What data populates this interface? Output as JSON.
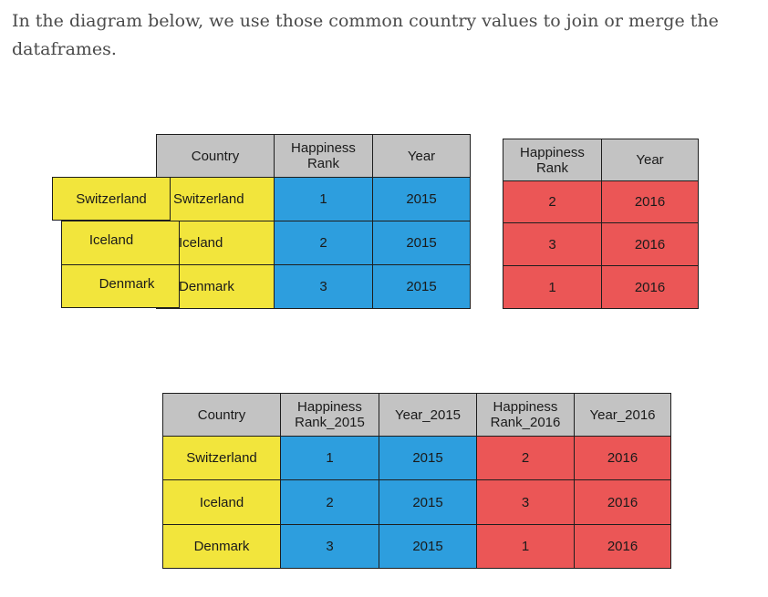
{
  "intro_text": "In the diagram below, we use those common country values to join or merge the dataframes.",
  "colors": {
    "header": "#c3c3c3",
    "country": "#f2e53c",
    "table_2015": "#2d9ede",
    "table_2016": "#eb5656"
  },
  "left_keys": [
    "Switzerland",
    "Iceland",
    "Denmark"
  ],
  "table_2015": {
    "headers": [
      "Country",
      "Happiness\nRank",
      "Year"
    ],
    "rows": [
      [
        "Switzerland",
        "1",
        "2015"
      ],
      [
        "Iceland",
        "2",
        "2015"
      ],
      [
        "Denmark",
        "3",
        "2015"
      ]
    ]
  },
  "table_2016": {
    "headers": [
      "Happiness\nRank",
      "Year"
    ],
    "rows": [
      [
        "2",
        "2016"
      ],
      [
        "3",
        "2016"
      ],
      [
        "1",
        "2016"
      ]
    ]
  },
  "merged": {
    "headers": [
      "Country",
      "Happiness\nRank_2015",
      "Year_2015",
      "Happiness\nRank_2016",
      "Year_2016"
    ],
    "rows": [
      [
        "Switzerland",
        "1",
        "2015",
        "2",
        "2016"
      ],
      [
        "Iceland",
        "2",
        "2015",
        "3",
        "2016"
      ],
      [
        "Denmark",
        "3",
        "2015",
        "1",
        "2016"
      ]
    ]
  }
}
